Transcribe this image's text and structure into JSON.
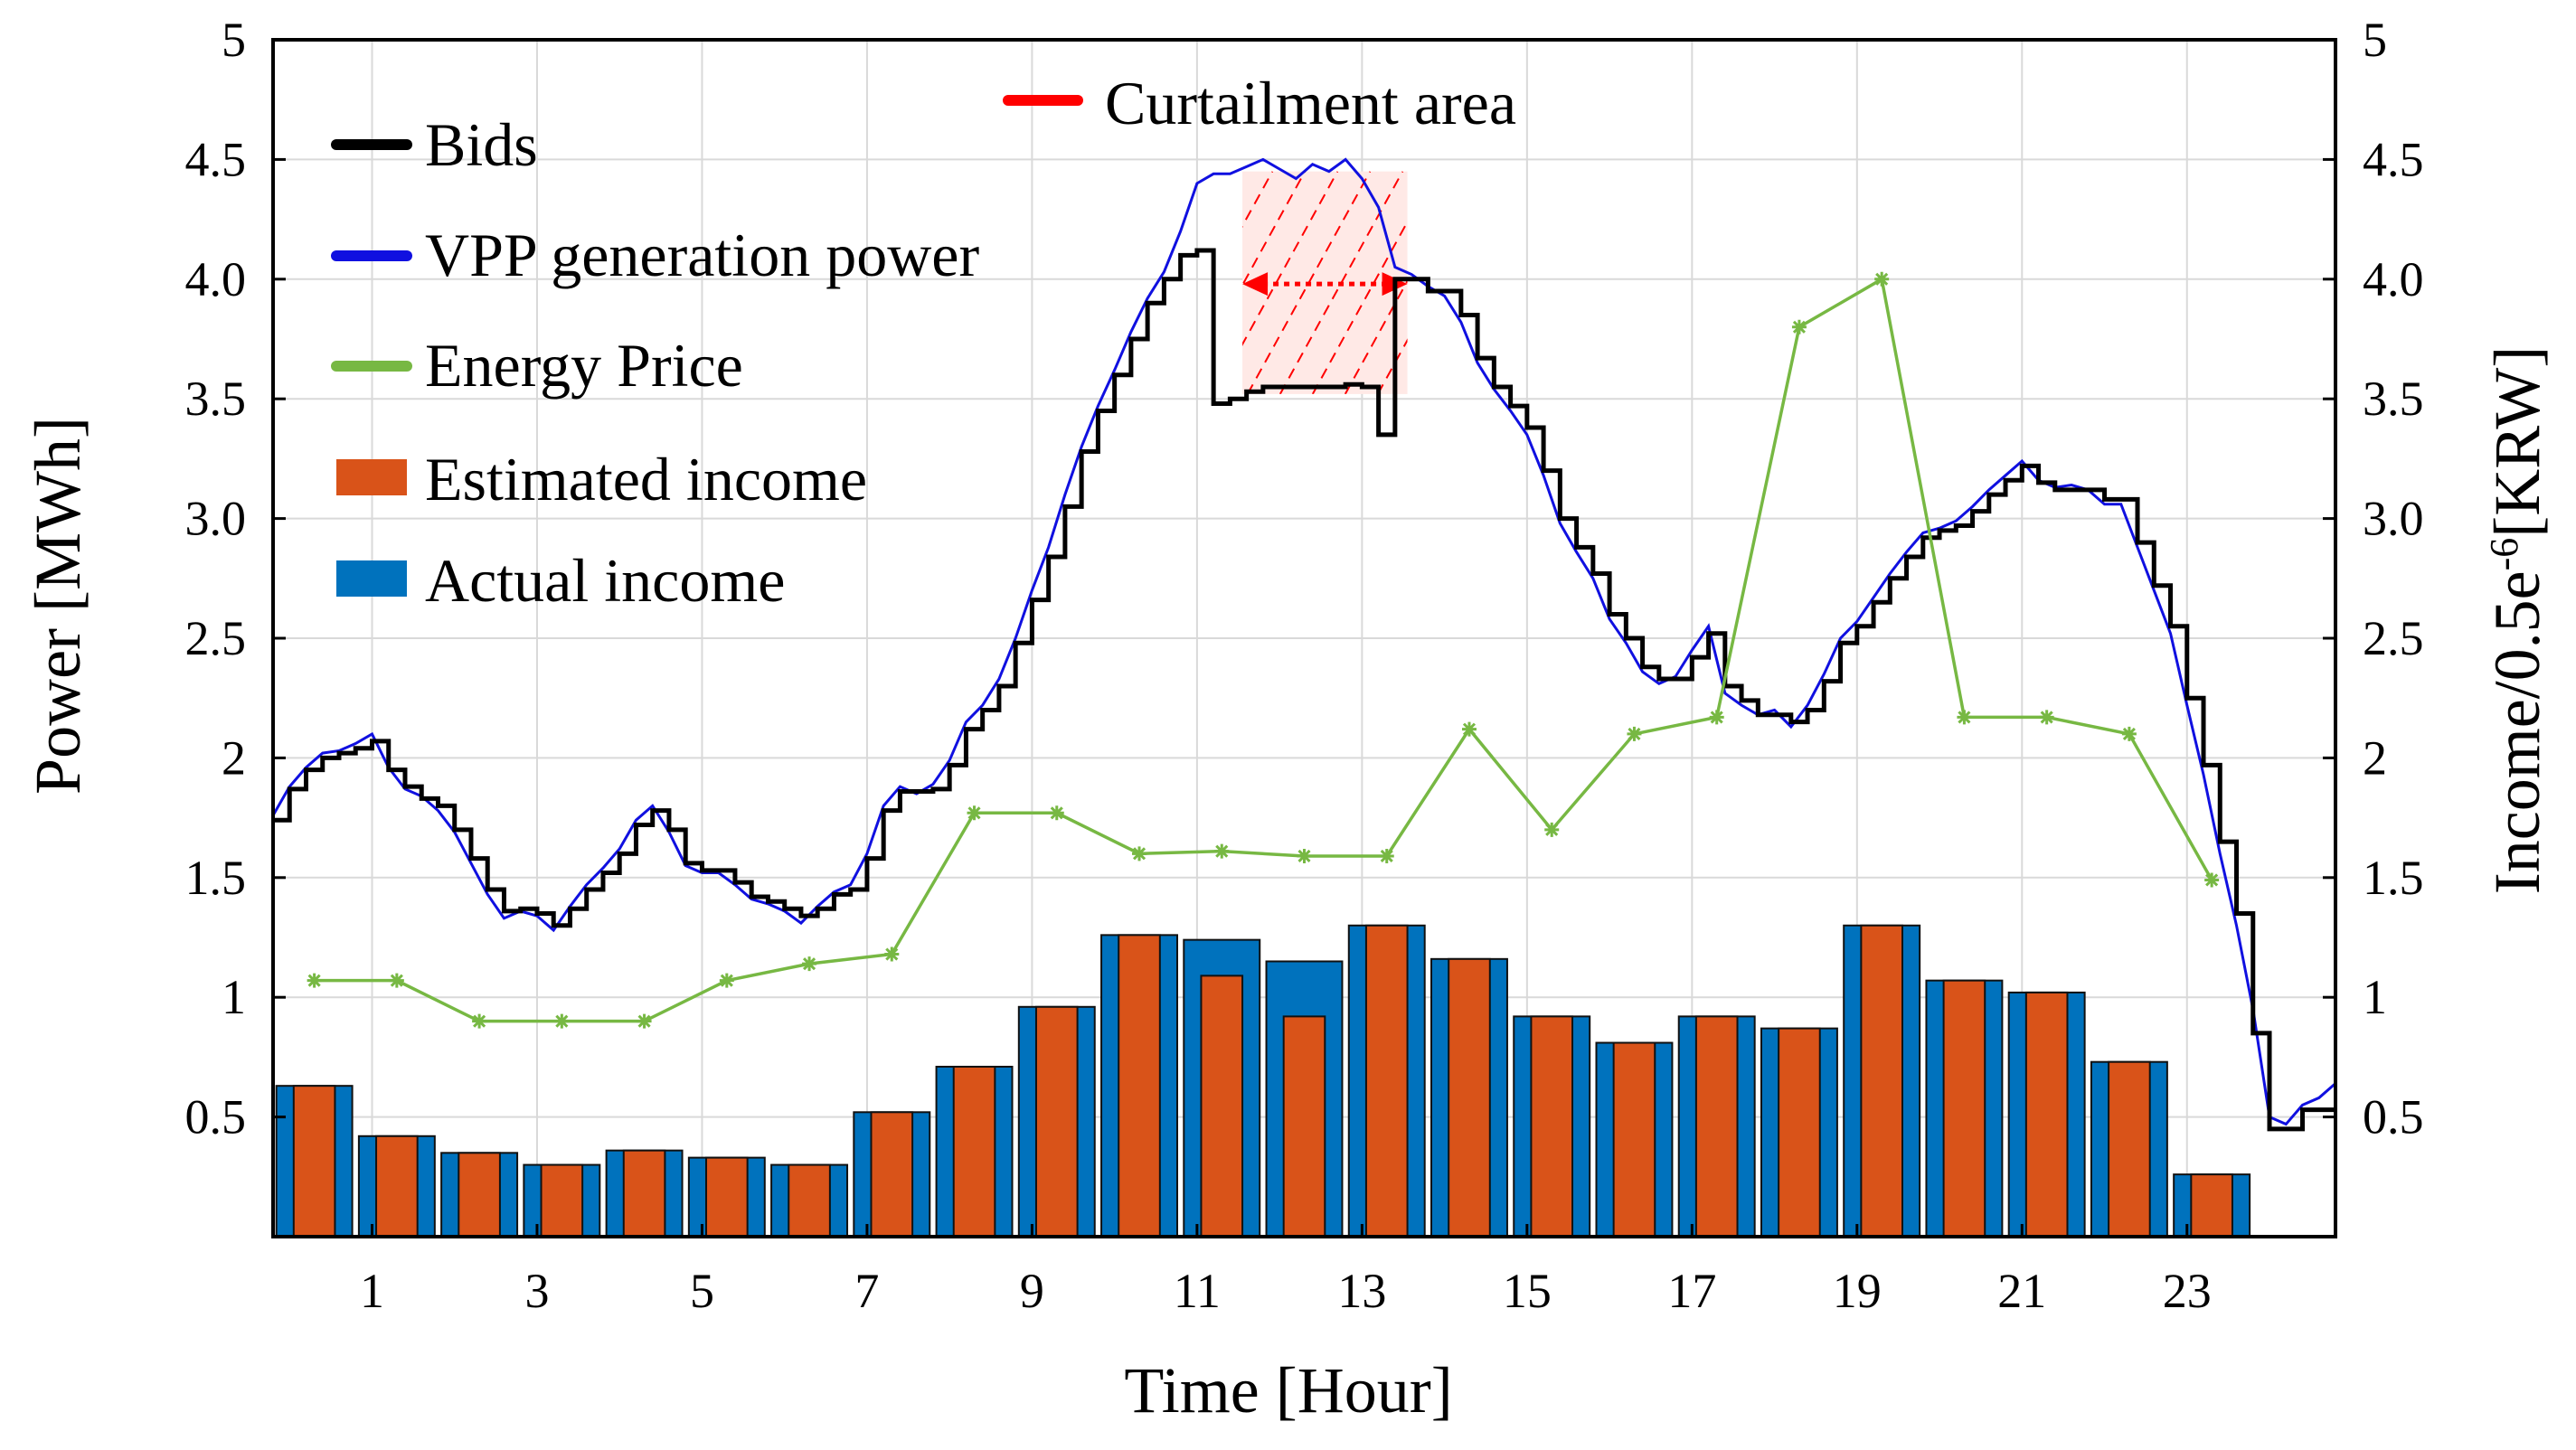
{
  "chart_data": {
    "type": "bar+line",
    "xlabel": "Time [Hour]",
    "ylabel_left": "Power [MWh]",
    "ylabel_right_base": "Income/0.5e",
    "ylabel_right_sup": "-6",
    "ylabel_right_tail": "[KRW]",
    "xlim": [
      0,
      25
    ],
    "ylim": [
      0,
      5
    ],
    "x_ticks": [
      "1",
      "3",
      "5",
      "7",
      "9",
      "11",
      "13",
      "15",
      "17",
      "19",
      "21",
      "23"
    ],
    "x_tick_values": [
      1.2,
      3.2,
      5.2,
      7.2,
      9.2,
      11.2,
      13.2,
      15.2,
      17.2,
      19.2,
      21.2,
      23.2
    ],
    "y_ticks_left": [
      "0.5",
      "1",
      "1.5",
      "2",
      "2.5",
      "3.0",
      "3.5",
      "4.0",
      "4.5",
      "5"
    ],
    "y_ticks_right": [
      "0.5",
      "1",
      "1.5",
      "2",
      "2.5",
      "3.0",
      "3.5",
      "4.0",
      "4.5",
      "5"
    ],
    "y_tick_values": [
      0.5,
      1,
      1.5,
      2,
      2.5,
      3,
      3.5,
      4,
      4.5,
      5
    ],
    "colors": {
      "bids": "#000000",
      "vpp": "#1010e0",
      "price": "#77b843",
      "estimated": "#d95319",
      "actual": "#0072bd",
      "curtailment": "#ff0000",
      "grid": "#d9d9d9"
    },
    "legend": {
      "bids": "Bids",
      "vpp": "VPP generation power",
      "price": "Energy Price",
      "estimated": "Estimated income",
      "actual": "Actual income",
      "curtailment": "Curtailment area"
    },
    "actual_income": [
      0.63,
      0.42,
      0.35,
      0.3,
      0.36,
      0.33,
      0.3,
      0.52,
      0.71,
      0.96,
      1.26,
      1.24,
      1.15,
      1.3,
      1.16,
      0.92,
      0.81,
      0.92,
      0.87,
      1.3,
      1.07,
      1.02,
      0.73,
      0.26
    ],
    "estimated_income": [
      0.63,
      0.42,
      0.35,
      0.3,
      0.36,
      0.33,
      0.3,
      0.52,
      0.71,
      0.96,
      1.26,
      1.09,
      0.92,
      1.3,
      1.16,
      0.92,
      0.81,
      0.92,
      0.87,
      1.3,
      1.07,
      1.02,
      0.73,
      0.26
    ],
    "energy_price": {
      "x": [
        0.5,
        1.5,
        2.5,
        3.5,
        4.5,
        5.5,
        6.5,
        7.5,
        8.5,
        9.5,
        10.5,
        11.5,
        12.5,
        13.5,
        14.5,
        15.5,
        16.5,
        17.5,
        18.5,
        19.5,
        20.5,
        21.5,
        22.5,
        23.5,
        24.5
      ],
      "y": [
        1.07,
        1.07,
        0.9,
        0.9,
        0.9,
        1.07,
        1.14,
        1.18,
        1.77,
        1.77,
        1.6,
        1.61,
        1.59,
        1.59,
        2.12,
        1.7,
        2.1,
        2.17,
        3.8,
        4.0,
        2.17,
        2.17,
        2.1,
        1.49,
        null
      ]
    },
    "bids": {
      "x": [
        0,
        0.2,
        0.4,
        0.6,
        0.8,
        1.0,
        1.2,
        1.4,
        1.6,
        1.8,
        2.0,
        2.2,
        2.4,
        2.6,
        2.8,
        3.0,
        3.2,
        3.4,
        3.6,
        3.8,
        4.0,
        4.2,
        4.4,
        4.6,
        4.8,
        5.0,
        5.2,
        5.4,
        5.6,
        5.8,
        6.0,
        6.2,
        6.4,
        6.6,
        6.8,
        7.0,
        7.2,
        7.4,
        7.6,
        7.8,
        8.0,
        8.2,
        8.4,
        8.6,
        8.8,
        9.0,
        9.2,
        9.4,
        9.6,
        9.8,
        10.0,
        10.2,
        10.4,
        10.6,
        10.8,
        11.0,
        11.2,
        11.4,
        11.6,
        11.8,
        12.0,
        12.2,
        12.4,
        12.6,
        12.8,
        13.0,
        13.2,
        13.4,
        13.6,
        13.8,
        14.0,
        14.2,
        14.4,
        14.6,
        14.8,
        15.0,
        15.2,
        15.4,
        15.6,
        15.8,
        16.0,
        16.2,
        16.4,
        16.6,
        16.8,
        17.0,
        17.2,
        17.4,
        17.6,
        17.8,
        18.0,
        18.2,
        18.4,
        18.6,
        18.8,
        19.0,
        19.2,
        19.4,
        19.6,
        19.8,
        20.0,
        20.2,
        20.4,
        20.6,
        20.8,
        21.0,
        21.2,
        21.4,
        21.6,
        21.8,
        22.0,
        22.2,
        22.4,
        22.6,
        22.8,
        23.0,
        23.2,
        23.4,
        23.6,
        23.8,
        24.0,
        24.2,
        24.4,
        24.6,
        24.8
      ],
      "y": [
        1.74,
        1.87,
        1.95,
        2.0,
        2.02,
        2.04,
        2.07,
        1.95,
        1.88,
        1.83,
        1.8,
        1.7,
        1.58,
        1.45,
        1.36,
        1.37,
        1.35,
        1.3,
        1.37,
        1.45,
        1.52,
        1.6,
        1.72,
        1.78,
        1.7,
        1.56,
        1.53,
        1.53,
        1.48,
        1.42,
        1.4,
        1.37,
        1.34,
        1.37,
        1.43,
        1.45,
        1.58,
        1.78,
        1.86,
        1.86,
        1.87,
        1.97,
        2.12,
        2.2,
        2.3,
        2.48,
        2.66,
        2.84,
        3.05,
        3.28,
        3.45,
        3.6,
        3.75,
        3.9,
        4.0,
        4.1,
        4.12,
        3.48,
        3.5,
        3.53,
        3.55,
        3.55,
        3.55,
        3.55,
        3.55,
        3.56,
        3.55,
        3.35,
        4.0,
        4.0,
        3.95,
        3.95,
        3.85,
        3.67,
        3.55,
        3.47,
        3.38,
        3.2,
        3.0,
        2.88,
        2.77,
        2.6,
        2.5,
        2.38,
        2.33,
        2.33,
        2.42,
        2.52,
        2.3,
        2.24,
        2.18,
        2.18,
        2.15,
        2.2,
        2.32,
        2.48,
        2.55,
        2.65,
        2.75,
        2.84,
        2.92,
        2.95,
        2.97,
        3.03,
        3.1,
        3.16,
        3.22,
        3.15,
        3.12,
        3.12,
        3.12,
        3.08,
        3.08,
        2.9,
        2.72,
        2.55,
        2.25,
        1.97,
        1.65,
        1.35,
        0.85,
        0.45,
        0.45,
        0.53,
        0.53
      ]
    },
    "vpp_generation": {
      "x": [
        0,
        0.2,
        0.4,
        0.6,
        0.8,
        1.0,
        1.2,
        1.4,
        1.6,
        1.8,
        2.0,
        2.2,
        2.4,
        2.6,
        2.8,
        3.0,
        3.2,
        3.4,
        3.6,
        3.8,
        4.0,
        4.2,
        4.4,
        4.6,
        4.8,
        5.0,
        5.2,
        5.4,
        5.6,
        5.8,
        6.0,
        6.2,
        6.4,
        6.6,
        6.8,
        7.0,
        7.2,
        7.4,
        7.6,
        7.8,
        8.0,
        8.2,
        8.4,
        8.6,
        8.8,
        9.0,
        9.2,
        9.4,
        9.6,
        9.8,
        10.0,
        10.2,
        10.4,
        10.6,
        10.8,
        11.0,
        11.2,
        11.4,
        11.6,
        11.8,
        12.0,
        12.2,
        12.4,
        12.6,
        12.8,
        13.0,
        13.2,
        13.4,
        13.6,
        13.8,
        14.0,
        14.2,
        14.4,
        14.6,
        14.8,
        15.0,
        15.2,
        15.4,
        15.6,
        15.8,
        16.0,
        16.2,
        16.4,
        16.6,
        16.8,
        17.0,
        17.2,
        17.4,
        17.6,
        17.8,
        18.0,
        18.2,
        18.4,
        18.6,
        18.8,
        19.0,
        19.2,
        19.4,
        19.6,
        19.8,
        20.0,
        20.2,
        20.4,
        20.6,
        20.8,
        21.0,
        21.2,
        21.4,
        21.6,
        21.8,
        22.0,
        22.2,
        22.4,
        22.6,
        22.8,
        23.0,
        23.2,
        23.4,
        23.6,
        23.8,
        24.0,
        24.2,
        24.4,
        24.6,
        24.8,
        25.0
      ],
      "y": [
        1.76,
        1.88,
        1.96,
        2.02,
        2.03,
        2.06,
        2.1,
        1.96,
        1.87,
        1.84,
        1.78,
        1.69,
        1.56,
        1.43,
        1.33,
        1.36,
        1.34,
        1.28,
        1.38,
        1.47,
        1.54,
        1.62,
        1.74,
        1.8,
        1.69,
        1.55,
        1.52,
        1.52,
        1.47,
        1.41,
        1.39,
        1.36,
        1.31,
        1.38,
        1.44,
        1.47,
        1.6,
        1.8,
        1.88,
        1.85,
        1.89,
        1.99,
        2.15,
        2.22,
        2.33,
        2.5,
        2.7,
        2.88,
        3.1,
        3.3,
        3.47,
        3.62,
        3.78,
        3.92,
        4.03,
        4.2,
        4.4,
        4.44,
        4.44,
        4.47,
        4.5,
        4.46,
        4.42,
        4.48,
        4.45,
        4.5,
        4.42,
        4.3,
        4.05,
        4.02,
        3.97,
        3.93,
        3.82,
        3.65,
        3.54,
        3.45,
        3.35,
        3.18,
        2.98,
        2.86,
        2.75,
        2.58,
        2.48,
        2.36,
        2.31,
        2.34,
        2.45,
        2.55,
        2.27,
        2.22,
        2.18,
        2.2,
        2.13,
        2.22,
        2.35,
        2.5,
        2.57,
        2.67,
        2.77,
        2.86,
        2.94,
        2.96,
        2.99,
        3.05,
        3.12,
        3.18,
        3.24,
        3.16,
        3.13,
        3.14,
        3.12,
        3.06,
        3.06,
        2.88,
        2.7,
        2.52,
        2.22,
        1.93,
        1.6,
        1.3,
        0.95,
        0.5,
        0.47,
        0.55,
        0.58,
        0.64
      ]
    },
    "curtailment": {
      "x_start": 11.75,
      "x_end": 13.75,
      "y_low": 3.52,
      "y_high": 4.45
    }
  }
}
